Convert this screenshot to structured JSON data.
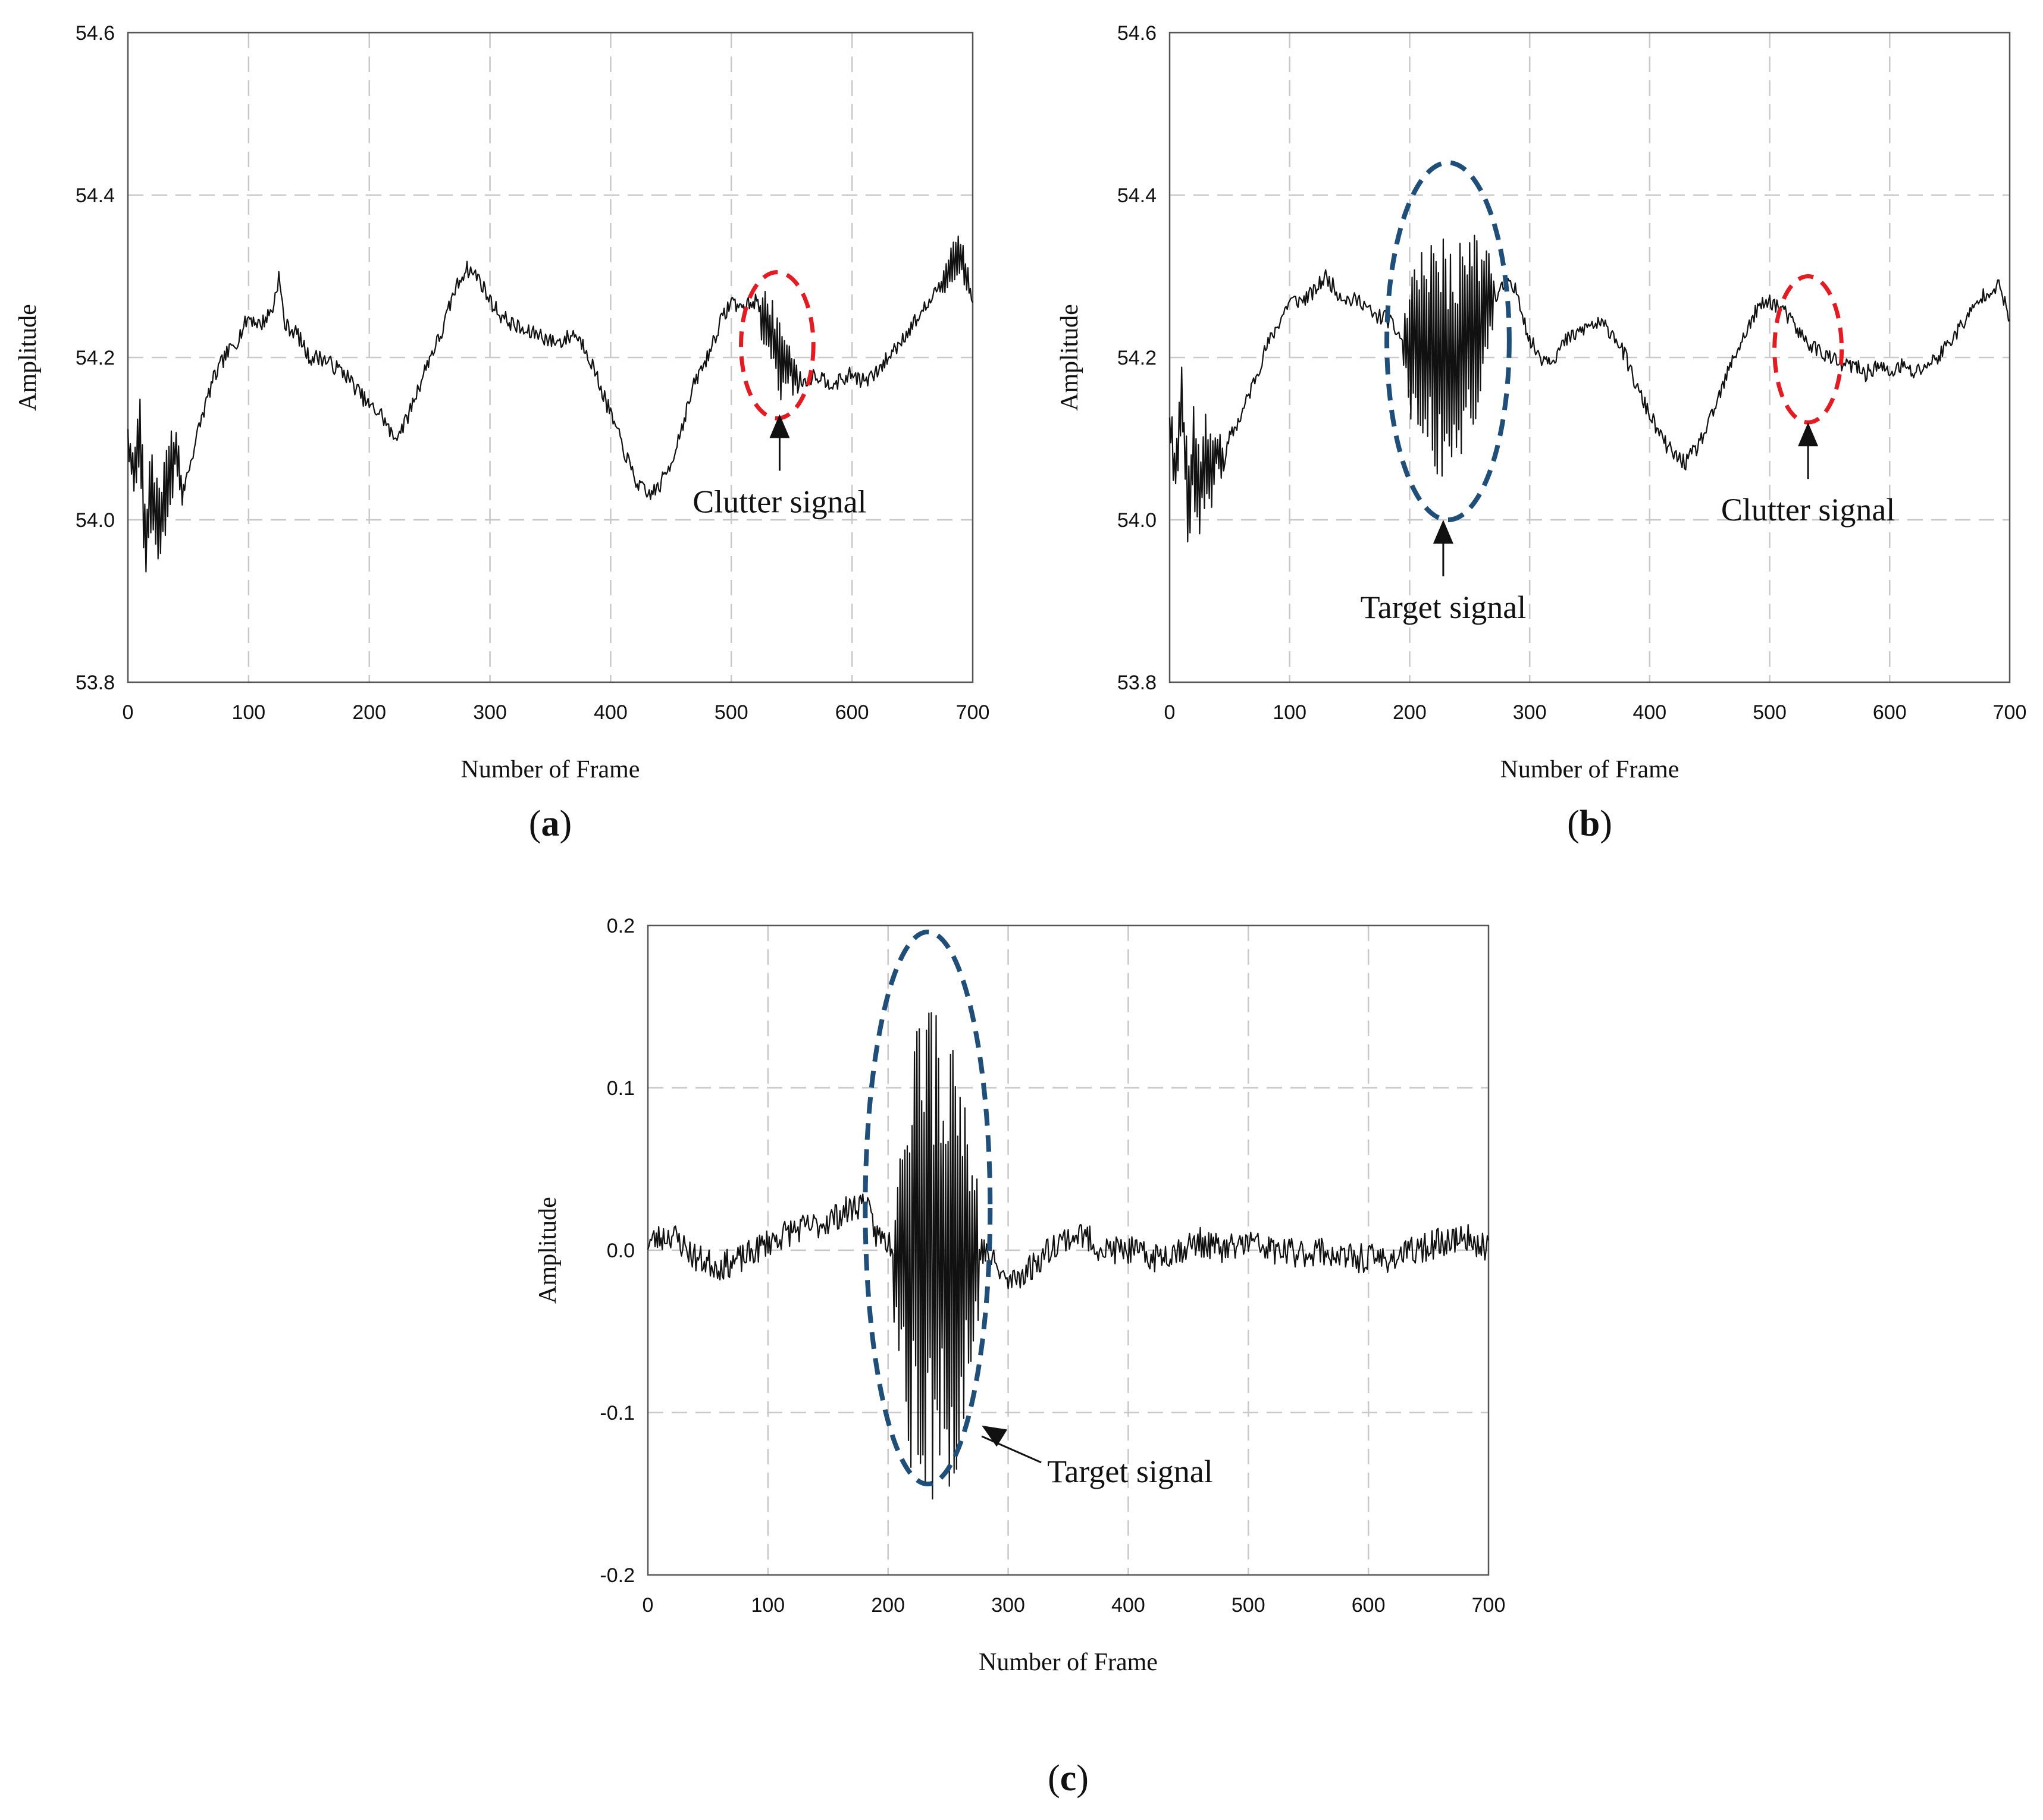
{
  "chart_data": [
    {
      "id": "a",
      "type": "line",
      "panel_label": "a",
      "xlabel": "Number of Frame",
      "ylabel": "Amplitude",
      "xlim": [
        0,
        700
      ],
      "ylim": [
        53.8,
        54.6
      ],
      "xticks": [
        0,
        100,
        200,
        300,
        400,
        500,
        600,
        700
      ],
      "yticks": [
        "53.8",
        "54.0",
        "54.2",
        "54.4",
        "54.6"
      ],
      "ytick_values": [
        53.8,
        54.0,
        54.2,
        54.4,
        54.6
      ],
      "grid": true,
      "noise": {
        "seed": 7,
        "amp": 0.01
      },
      "x": [
        0,
        5,
        10,
        15,
        20,
        25,
        30,
        35,
        40,
        45,
        50,
        60,
        70,
        80,
        90,
        100,
        110,
        120,
        125,
        130,
        140,
        150,
        160,
        170,
        180,
        190,
        200,
        210,
        220,
        230,
        240,
        250,
        260,
        270,
        280,
        290,
        300,
        310,
        320,
        330,
        340,
        350,
        360,
        370,
        380,
        390,
        400,
        410,
        420,
        430,
        440,
        450,
        460,
        470,
        480,
        490,
        500,
        510,
        520,
        530,
        540,
        550,
        560,
        570,
        580,
        590,
        600,
        610,
        620,
        630,
        640,
        650,
        660,
        670,
        680,
        690,
        700
      ],
      "series": [
        {
          "values": [
            54.1,
            54.05,
            54.12,
            53.96,
            54.05,
            53.98,
            54.02,
            54.05,
            54.1,
            54.03,
            54.06,
            54.12,
            54.17,
            54.2,
            54.22,
            54.25,
            54.24,
            54.26,
            54.3,
            54.24,
            54.23,
            54.2,
            54.2,
            54.19,
            54.18,
            54.16,
            54.14,
            54.13,
            54.1,
            54.12,
            54.16,
            54.2,
            54.23,
            54.28,
            54.31,
            54.3,
            54.27,
            54.25,
            54.24,
            54.23,
            54.23,
            54.22,
            54.22,
            54.23,
            54.21,
            54.17,
            54.13,
            54.09,
            54.05,
            54.03,
            54.04,
            54.07,
            54.12,
            54.17,
            54.2,
            54.24,
            54.27,
            54.26,
            54.27,
            54.24,
            54.2,
            54.18,
            54.17,
            54.18,
            54.17,
            54.17,
            54.18,
            54.17,
            54.18,
            54.2,
            54.22,
            54.24,
            54.26,
            54.28,
            54.31,
            54.32,
            54.27
          ]
        }
      ],
      "bursts": [
        {
          "from": 0,
          "to": 45,
          "amp": 0.06
        },
        {
          "from": 522,
          "to": 555,
          "amp": 0.05
        },
        {
          "from": 670,
          "to": 700,
          "amp": 0.025
        }
      ],
      "annotations": [
        {
          "text": "Clutter signal",
          "target_x": 540,
          "target_y": 54.13
        }
      ],
      "ellipses": [
        {
          "color": "red",
          "cx": 538,
          "cy": 54.215,
          "rx": 30,
          "ry": 0.09
        }
      ]
    },
    {
      "id": "b",
      "type": "line",
      "panel_label": "b",
      "xlabel": "Number of Frame",
      "ylabel": "Amplitude",
      "xlim": [
        0,
        700
      ],
      "ylim": [
        53.8,
        54.6
      ],
      "xticks": [
        0,
        100,
        200,
        300,
        400,
        500,
        600,
        700
      ],
      "yticks": [
        "53.8",
        "54.0",
        "54.2",
        "54.4",
        "54.6"
      ],
      "ytick_values": [
        53.8,
        54.0,
        54.2,
        54.4,
        54.6
      ],
      "grid": true,
      "noise": {
        "seed": 11,
        "amp": 0.01
      },
      "x": [
        0,
        5,
        10,
        15,
        20,
        25,
        30,
        35,
        40,
        45,
        50,
        60,
        70,
        80,
        90,
        100,
        110,
        120,
        130,
        140,
        150,
        160,
        170,
        180,
        190,
        200,
        210,
        220,
        230,
        240,
        250,
        260,
        270,
        280,
        290,
        300,
        310,
        320,
        330,
        340,
        350,
        360,
        370,
        380,
        390,
        400,
        410,
        420,
        430,
        440,
        450,
        460,
        470,
        480,
        490,
        500,
        510,
        520,
        530,
        540,
        550,
        560,
        570,
        580,
        590,
        600,
        610,
        620,
        630,
        640,
        650,
        660,
        670,
        680,
        690,
        700
      ],
      "series": [
        {
          "values": [
            54.12,
            54.06,
            54.15,
            54.02,
            54.08,
            54.04,
            54.07,
            54.06,
            54.08,
            54.07,
            54.1,
            54.13,
            54.17,
            54.21,
            54.24,
            54.27,
            54.27,
            54.28,
            54.3,
            54.28,
            54.27,
            54.27,
            54.25,
            54.25,
            54.23,
            54.21,
            54.22,
            54.2,
            54.19,
            54.2,
            54.23,
            54.25,
            54.27,
            54.29,
            54.28,
            54.22,
            54.2,
            54.2,
            54.22,
            54.23,
            54.24,
            54.24,
            54.23,
            54.2,
            54.16,
            54.13,
            54.1,
            54.08,
            54.07,
            54.09,
            54.12,
            54.16,
            54.2,
            54.23,
            54.26,
            54.27,
            54.26,
            54.24,
            54.22,
            54.21,
            54.2,
            54.19,
            54.19,
            54.18,
            54.19,
            54.18,
            54.19,
            54.18,
            54.19,
            54.2,
            54.22,
            54.24,
            54.26,
            54.28,
            54.29,
            54.25
          ]
        }
      ],
      "bursts": [
        {
          "from": 0,
          "to": 45,
          "amp": 0.07
        },
        {
          "from": 195,
          "to": 270,
          "amp": 0.16
        }
      ],
      "annotations": [
        {
          "text": "Target signal",
          "target_x": 228,
          "target_y": 54.0
        },
        {
          "text": "Clutter signal",
          "target_x": 532,
          "target_y": 54.12
        }
      ],
      "ellipses": [
        {
          "color": "blue",
          "cx": 232,
          "cy": 54.22,
          "rx": 51,
          "ry": 0.22
        },
        {
          "color": "red",
          "cx": 532,
          "cy": 54.21,
          "rx": 28,
          "ry": 0.09
        }
      ]
    },
    {
      "id": "c",
      "type": "line",
      "panel_label": "c",
      "xlabel": "Number of Frame",
      "ylabel": "Amplitude",
      "xlim": [
        0,
        700
      ],
      "ylim": [
        -0.2,
        0.2
      ],
      "xticks": [
        0,
        100,
        200,
        300,
        400,
        500,
        600,
        700
      ],
      "yticks": [
        "-0.2",
        "-0.1",
        "0.0",
        "0.1",
        "0.2"
      ],
      "ytick_values": [
        -0.2,
        -0.1,
        0.0,
        0.1,
        0.2
      ],
      "grid": true,
      "noise": {
        "seed": 23,
        "amp": 0.009
      },
      "x": [
        0,
        20,
        40,
        60,
        80,
        100,
        120,
        140,
        160,
        180,
        190,
        200,
        220,
        240,
        260,
        280,
        300,
        320,
        340,
        360,
        380,
        400,
        420,
        440,
        460,
        480,
        500,
        520,
        540,
        560,
        580,
        600,
        620,
        640,
        660,
        680,
        700
      ],
      "series": [
        {
          "values": [
            0.005,
            0.01,
            -0.005,
            -0.01,
            -0.005,
            0.005,
            0.012,
            0.015,
            0.022,
            0.03,
            0.01,
            0.005,
            0.0,
            0.0,
            0.0,
            0.0,
            -0.02,
            -0.01,
            0.005,
            0.01,
            0.0,
            0.0,
            -0.005,
            0.0,
            0.005,
            0.0,
            0.005,
            0.0,
            -0.002,
            0.0,
            -0.005,
            -0.005,
            -0.005,
            0.0,
            0.005,
            0.008,
            0.002
          ]
        }
      ],
      "bursts": [
        {
          "from": 205,
          "to": 275,
          "amp": 0.17
        }
      ],
      "annotations": [
        {
          "text": "Target signal",
          "target_x": 278,
          "target_y": -0.108
        }
      ],
      "ellipses": [
        {
          "color": "blue",
          "cx": 233,
          "cy": 0.026,
          "rx": 52,
          "ry": 0.17
        }
      ]
    }
  ]
}
